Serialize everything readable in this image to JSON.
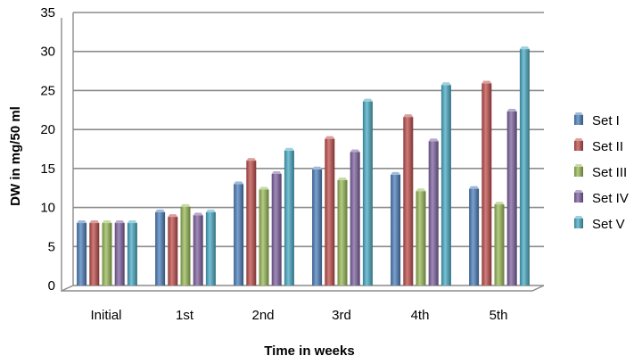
{
  "chart_data": {
    "type": "bar",
    "title": "",
    "xlabel": "Time in weeks",
    "ylabel": "DW in mg/50 ml",
    "ylim": [
      0,
      35
    ],
    "yticks": [
      0,
      5,
      10,
      15,
      20,
      25,
      30,
      35
    ],
    "grid": true,
    "legend_position": "right",
    "categories": [
      "Initial",
      "1st",
      "2nd",
      "3rd",
      "4th",
      "5th"
    ],
    "series": [
      {
        "name": "Set I",
        "color": "#4f81bd",
        "values": [
          8.0,
          9.4,
          13.0,
          14.9,
          14.2,
          12.4
        ]
      },
      {
        "name": "Set II",
        "color": "#c0504d",
        "values": [
          8.0,
          8.8,
          16.0,
          18.8,
          21.6,
          25.9
        ]
      },
      {
        "name": "Set III",
        "color": "#9bbb59",
        "values": [
          8.0,
          10.1,
          12.3,
          13.5,
          12.1,
          10.4
        ]
      },
      {
        "name": "Set IV",
        "color": "#8064a2",
        "values": [
          8.0,
          9.0,
          14.3,
          17.1,
          18.5,
          22.3
        ]
      },
      {
        "name": "Set V",
        "color": "#4bacc6",
        "values": [
          8.0,
          9.4,
          17.3,
          23.6,
          25.7,
          30.3
        ]
      }
    ]
  }
}
